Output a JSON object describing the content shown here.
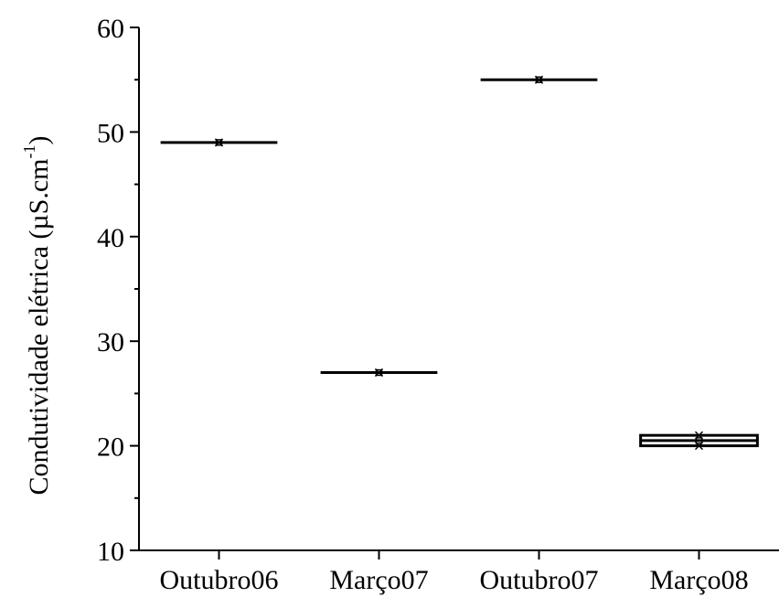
{
  "chart_data": {
    "type": "box",
    "categories": [
      "Outubro06",
      "Março07",
      "Outubro07",
      "Março08"
    ],
    "boxes": [
      {
        "category": "Outubro06",
        "min": 49,
        "q1": 49,
        "median": 49,
        "q3": 49,
        "max": 49,
        "mean": 49
      },
      {
        "category": "Março07",
        "min": 27,
        "q1": 27,
        "median": 27,
        "q3": 27,
        "max": 27,
        "mean": 27
      },
      {
        "category": "Outubro07",
        "min": 55,
        "q1": 55,
        "median": 55,
        "q3": 55,
        "max": 55,
        "mean": 55
      },
      {
        "category": "Março08",
        "min": 20,
        "q1": 20,
        "median": 20.5,
        "q3": 21,
        "max": 21,
        "mean": 20.5
      }
    ],
    "ylabel": "Condutividade elétrica (µS.cm",
    "ylabel_superscript": "-1",
    "ylabel_suffix": ")",
    "ylim": [
      10,
      60
    ],
    "yticks": [
      10,
      20,
      30,
      40,
      50,
      60
    ],
    "ytick_labels": [
      "10",
      "20",
      "30",
      "40",
      "50",
      "60"
    ],
    "y_minor_step": 5,
    "grid": false,
    "colors": {
      "axis": "#000000",
      "box_fill": "#ffffff",
      "box_stroke": "#000000"
    }
  }
}
